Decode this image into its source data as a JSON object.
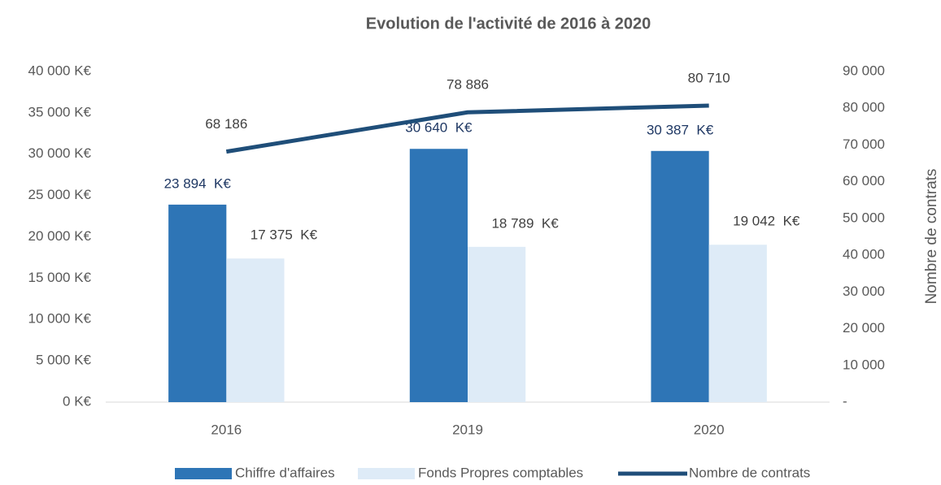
{
  "chart_data": {
    "type": "bar_line",
    "title": "Evolution de l'activité de 2016 à 2020",
    "y2label": "Nombre de contrats",
    "categories": [
      "2016",
      "2019",
      "2020"
    ],
    "series": [
      {
        "name": "Chiffre d'affaires",
        "type": "bar",
        "color": "#2e75b6",
        "label_color": "#1f3864",
        "values": [
          23894,
          30640,
          30387
        ],
        "value_labels": [
          "23 894  K€",
          "30 640  K€",
          "30 387  K€"
        ]
      },
      {
        "name": "Fonds Propres comptables",
        "type": "bar",
        "color": "#deebf7",
        "label_color": "#404040",
        "values": [
          17375,
          18789,
          19042
        ],
        "value_labels": [
          "17 375  K€",
          "18 789  K€",
          "19 042  K€"
        ]
      },
      {
        "name": "Nombre de contrats",
        "type": "line",
        "axis": "y2",
        "color": "#1f4e79",
        "label_color": "#404040",
        "values": [
          68186,
          78886,
          80710
        ],
        "value_labels": [
          "68 186",
          "78 886",
          "80 710"
        ]
      }
    ],
    "ylim": [
      0,
      40000
    ],
    "yticks": [
      {
        "value": 0,
        "label": "0 K€"
      },
      {
        "value": 5000,
        "label": "5 000 K€"
      },
      {
        "value": 10000,
        "label": "10 000 K€"
      },
      {
        "value": 15000,
        "label": "15 000 K€"
      },
      {
        "value": 20000,
        "label": "20 000 K€"
      },
      {
        "value": 25000,
        "label": "25 000 K€"
      },
      {
        "value": 30000,
        "label": "30 000 K€"
      },
      {
        "value": 35000,
        "label": "35 000 K€"
      },
      {
        "value": 40000,
        "label": "40 000 K€"
      }
    ],
    "y2lim": [
      0,
      90000
    ],
    "y2ticks": [
      {
        "value": 0,
        "label": "-"
      },
      {
        "value": 10000,
        "label": "10 000"
      },
      {
        "value": 20000,
        "label": "20 000"
      },
      {
        "value": 30000,
        "label": "30 000"
      },
      {
        "value": 40000,
        "label": "40 000"
      },
      {
        "value": 50000,
        "label": "50 000"
      },
      {
        "value": 60000,
        "label": "60 000"
      },
      {
        "value": 70000,
        "label": "70 000"
      },
      {
        "value": 80000,
        "label": "80 000"
      },
      {
        "value": 90000,
        "label": "90 000"
      }
    ],
    "grid": false,
    "legend": "bottom"
  }
}
